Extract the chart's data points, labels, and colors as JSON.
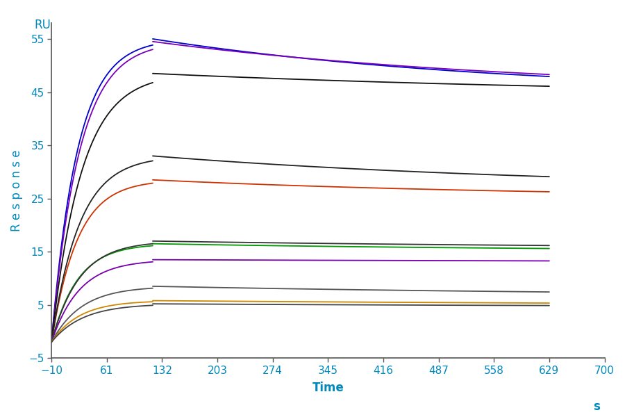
{
  "ylabel": "Response",
  "xlabel": "Time",
  "xlabel_unit": "s",
  "ylabel_unit": "RU",
  "xlim": [
    -10,
    700
  ],
  "ylim": [
    -5,
    58
  ],
  "xticks": [
    -10,
    61,
    132,
    203,
    274,
    345,
    416,
    487,
    558,
    629,
    700
  ],
  "yticks": [
    -5,
    5,
    15,
    25,
    35,
    45,
    55
  ],
  "assoc_start": -10,
  "assoc_end": 120,
  "dissoc_end": 629,
  "baseline": -2.0,
  "series": [
    {
      "color": "#0000cc",
      "peak": 55.0,
      "end_val": 44.5,
      "assoc_k": 0.03,
      "dissoc_k": 0.0022
    },
    {
      "color": "#7700bb",
      "peak": 54.5,
      "end_val": 44.8,
      "assoc_k": 0.028,
      "dissoc_k": 0.002
    },
    {
      "color": "#111111",
      "peak": 48.5,
      "end_val": 44.0,
      "assoc_k": 0.026,
      "dissoc_k": 0.0015
    },
    {
      "color": "#cc3300",
      "peak": 28.5,
      "end_val": 25.0,
      "assoc_k": 0.03,
      "dissoc_k": 0.002
    },
    {
      "color": "#222222",
      "peak": 33.0,
      "end_val": 26.5,
      "assoc_k": 0.028,
      "dissoc_k": 0.0018
    },
    {
      "color": "#009900",
      "peak": 16.5,
      "end_val": 15.0,
      "assoc_k": 0.03,
      "dissoc_k": 0.0018
    },
    {
      "color": "#333333",
      "peak": 17.0,
      "end_val": 15.5,
      "assoc_k": 0.028,
      "dissoc_k": 0.0016
    },
    {
      "color": "#7700aa",
      "peak": 13.5,
      "end_val": 13.0,
      "assoc_k": 0.028,
      "dissoc_k": 0.0012
    },
    {
      "color": "#555555",
      "peak": 8.5,
      "end_val": 6.5,
      "assoc_k": 0.026,
      "dissoc_k": 0.0015
    },
    {
      "color": "#cc8800",
      "peak": 5.8,
      "end_val": 4.8,
      "assoc_k": 0.028,
      "dissoc_k": 0.0012
    },
    {
      "color": "#444444",
      "peak": 5.2,
      "end_val": 4.5,
      "assoc_k": 0.025,
      "dissoc_k": 0.0012
    }
  ],
  "background_color": "#ffffff",
  "spine_color": "#555555",
  "tick_color": "#555555",
  "label_color": "#0088bb",
  "axis_fontsize": 12,
  "tick_fontsize": 11,
  "linewidth": 1.3
}
